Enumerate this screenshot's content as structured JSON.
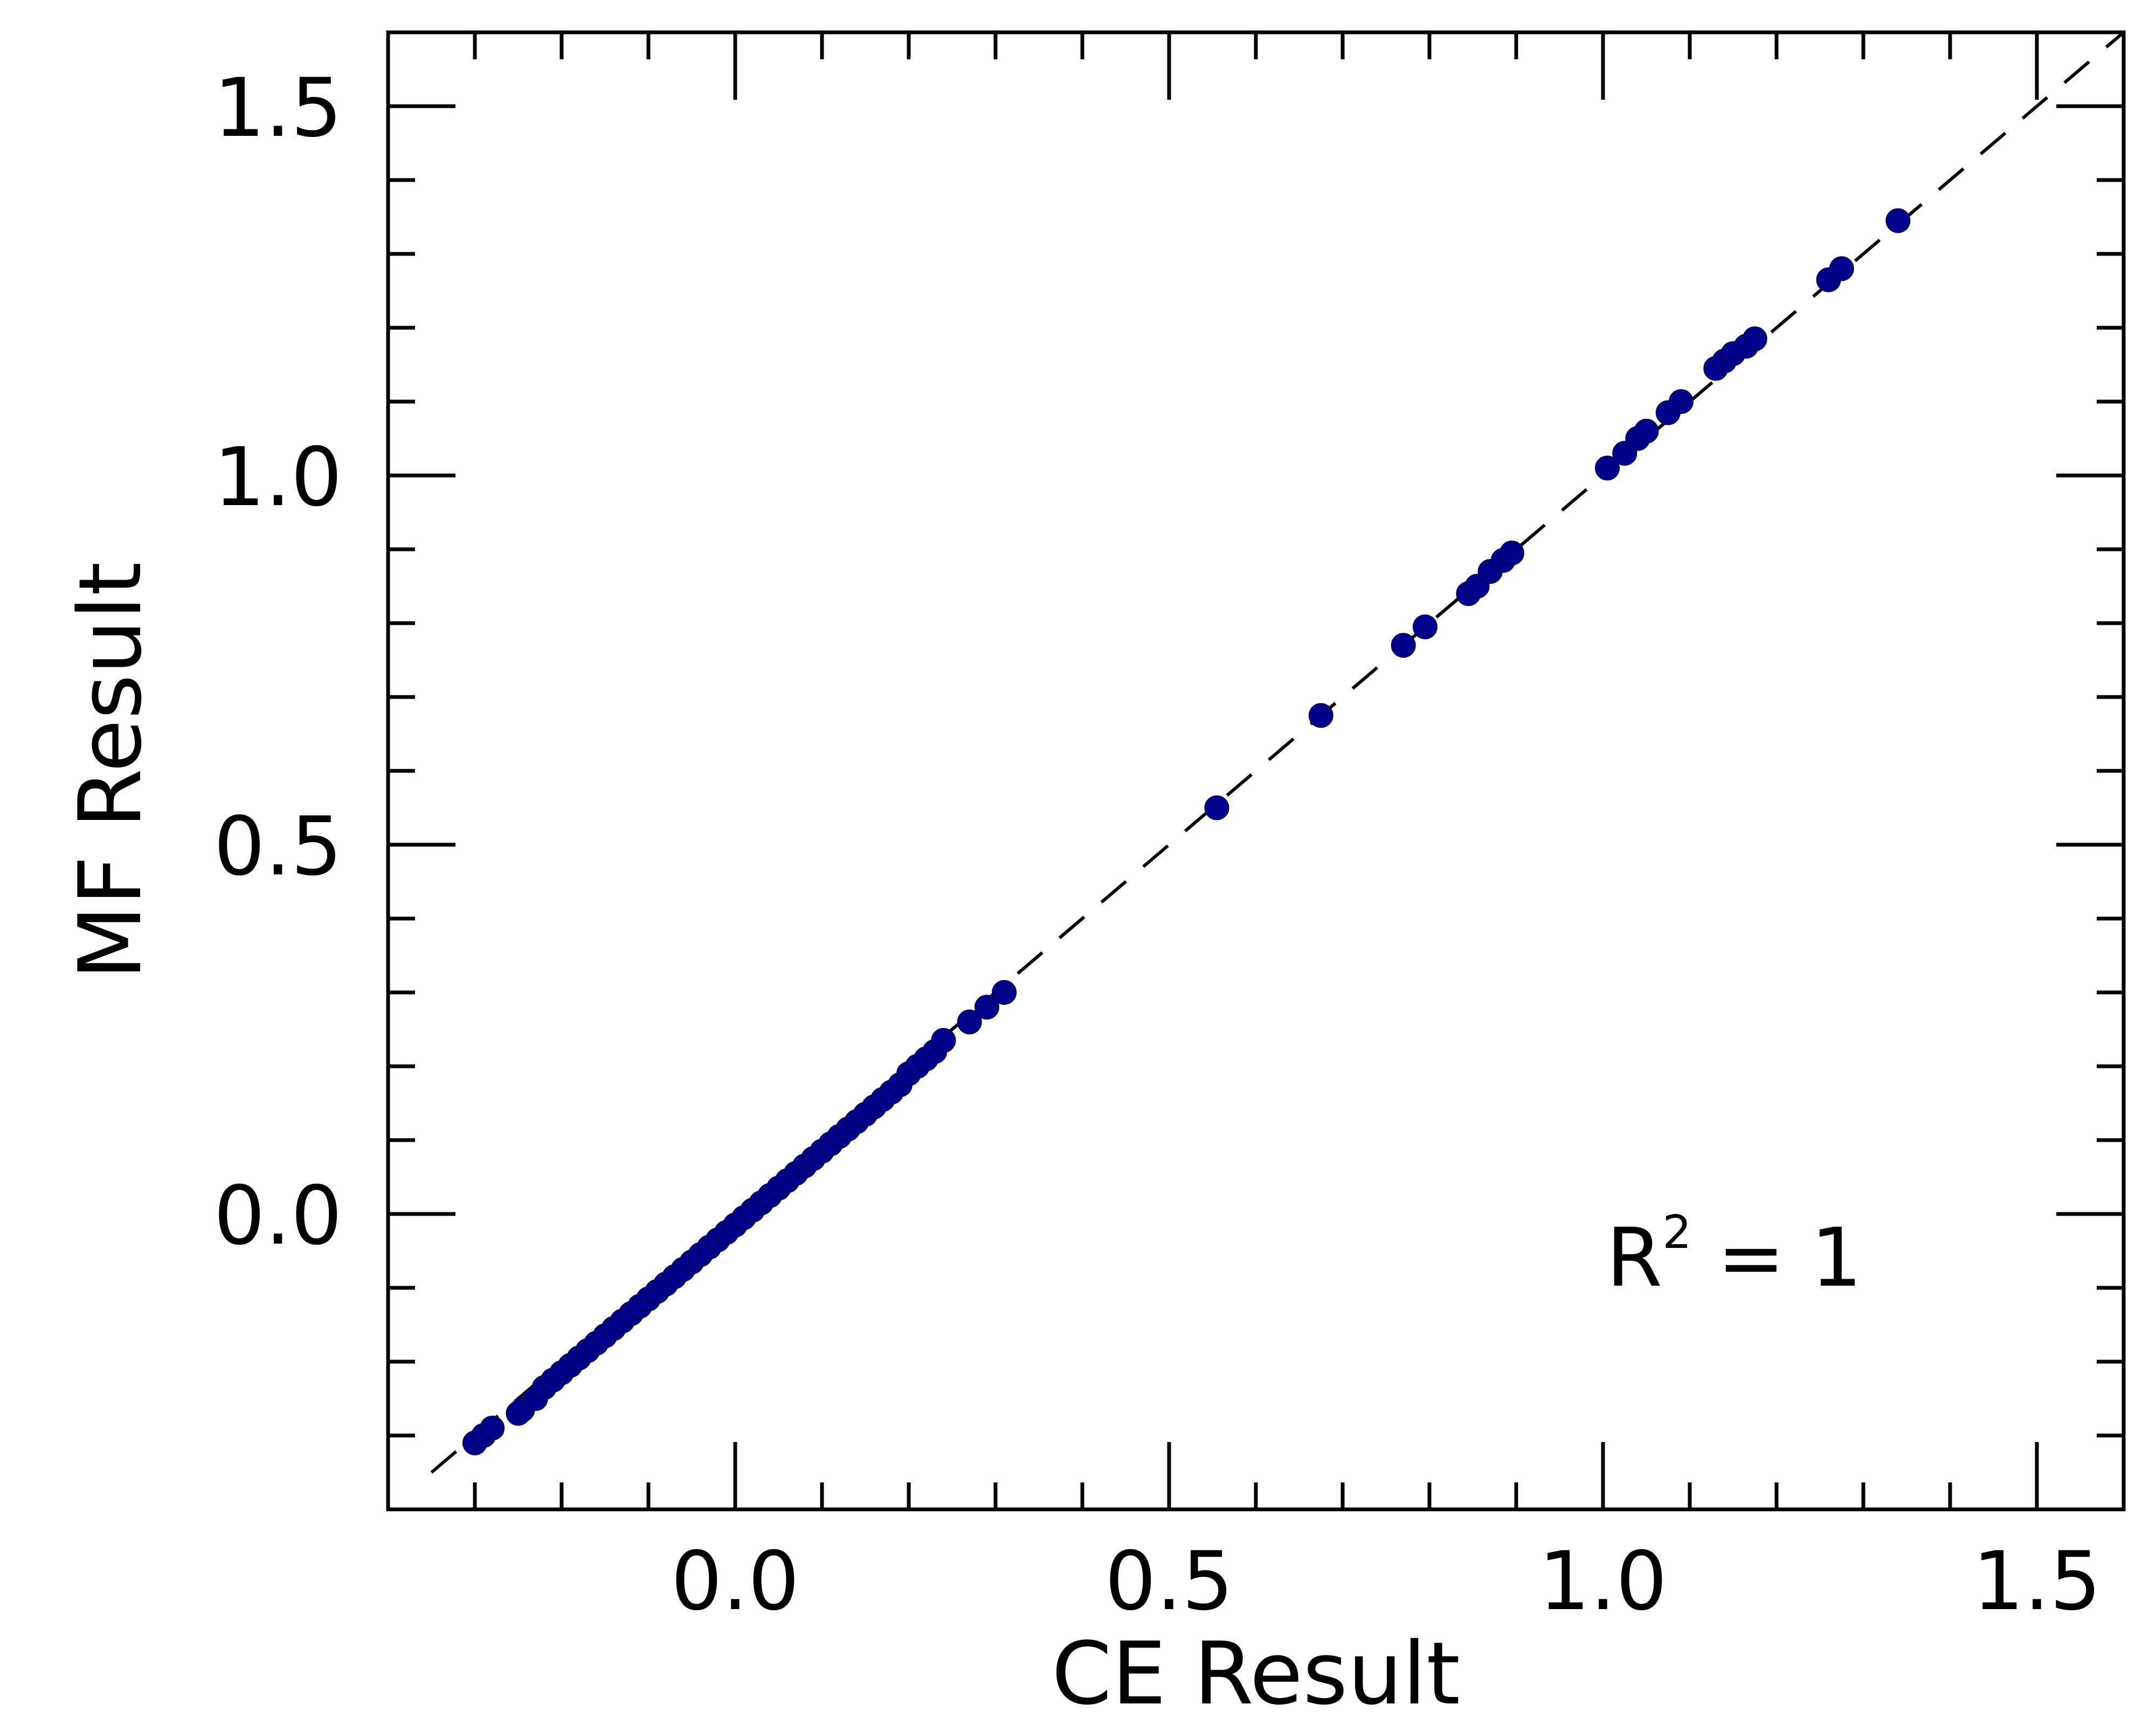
{
  "chart_data": {
    "type": "scatter",
    "title": "",
    "xlabel": "CE Result",
    "ylabel": "MF Result",
    "xlim": [
      -0.4,
      1.6
    ],
    "ylim": [
      -0.4,
      1.6
    ],
    "xticks": [
      "0.0",
      "0.5",
      "1.0",
      "1.5"
    ],
    "yticks": [
      "0.0",
      "0.5",
      "1.0",
      "1.5"
    ],
    "xtick_values": [
      0.0,
      0.5,
      1.0,
      1.5
    ],
    "ytick_values": [
      0.0,
      0.5,
      1.0,
      1.5
    ],
    "minor_step": 0.1,
    "grid": false,
    "annotation": {
      "base": "R",
      "superscript": "2",
      "suffix": " = 1"
    },
    "reference_line": {
      "type": "identity",
      "style": "dashed",
      "color": "#000000"
    },
    "marker_color": "#00008b",
    "series": [
      {
        "name": "",
        "points": [
          [
            -0.3,
            -0.31
          ],
          [
            -0.29,
            -0.3
          ],
          [
            -0.28,
            -0.29
          ],
          [
            -0.25,
            -0.27
          ],
          [
            -0.245,
            -0.265
          ],
          [
            -0.23,
            -0.25
          ],
          [
            -0.22,
            -0.235
          ],
          [
            -0.21,
            -0.225
          ],
          [
            -0.2,
            -0.215
          ],
          [
            -0.19,
            -0.205
          ],
          [
            -0.18,
            -0.195
          ],
          [
            -0.17,
            -0.185
          ],
          [
            -0.16,
            -0.175
          ],
          [
            -0.15,
            -0.165
          ],
          [
            -0.14,
            -0.155
          ],
          [
            -0.13,
            -0.145
          ],
          [
            -0.12,
            -0.135
          ],
          [
            -0.11,
            -0.125
          ],
          [
            -0.1,
            -0.115
          ],
          [
            -0.09,
            -0.105
          ],
          [
            -0.08,
            -0.095
          ],
          [
            -0.07,
            -0.085
          ],
          [
            -0.06,
            -0.075
          ],
          [
            -0.05,
            -0.065
          ],
          [
            -0.04,
            -0.055
          ],
          [
            -0.03,
            -0.045
          ],
          [
            -0.02,
            -0.035
          ],
          [
            -0.01,
            -0.025
          ],
          [
            0.0,
            -0.015
          ],
          [
            0.01,
            -0.005
          ],
          [
            0.02,
            0.005
          ],
          [
            0.03,
            0.015
          ],
          [
            0.04,
            0.025
          ],
          [
            0.05,
            0.035
          ],
          [
            0.06,
            0.045
          ],
          [
            0.07,
            0.055
          ],
          [
            0.08,
            0.065
          ],
          [
            0.09,
            0.075
          ],
          [
            0.1,
            0.085
          ],
          [
            0.11,
            0.095
          ],
          [
            0.12,
            0.105
          ],
          [
            0.13,
            0.115
          ],
          [
            0.14,
            0.125
          ],
          [
            0.15,
            0.135
          ],
          [
            0.16,
            0.145
          ],
          [
            0.17,
            0.155
          ],
          [
            0.18,
            0.165
          ],
          [
            0.19,
            0.175
          ],
          [
            0.2,
            0.19
          ],
          [
            0.21,
            0.2
          ],
          [
            0.22,
            0.21
          ],
          [
            0.23,
            0.22
          ],
          [
            0.24,
            0.235
          ],
          [
            0.27,
            0.26
          ],
          [
            0.29,
            0.28
          ],
          [
            0.31,
            0.3
          ],
          [
            0.555,
            0.55
          ],
          [
            0.675,
            0.675
          ],
          [
            0.77,
            0.77
          ],
          [
            0.795,
            0.795
          ],
          [
            0.845,
            0.84
          ],
          [
            0.855,
            0.85
          ],
          [
            0.87,
            0.87
          ],
          [
            0.885,
            0.885
          ],
          [
            0.895,
            0.895
          ],
          [
            1.005,
            1.01
          ],
          [
            1.025,
            1.03
          ],
          [
            1.04,
            1.05
          ],
          [
            1.05,
            1.06
          ],
          [
            1.075,
            1.085
          ],
          [
            1.09,
            1.1
          ],
          [
            1.13,
            1.145
          ],
          [
            1.14,
            1.155
          ],
          [
            1.15,
            1.165
          ],
          [
            1.165,
            1.175
          ],
          [
            1.175,
            1.185
          ],
          [
            1.26,
            1.265
          ],
          [
            1.275,
            1.28
          ],
          [
            1.34,
            1.345
          ]
        ]
      }
    ]
  }
}
